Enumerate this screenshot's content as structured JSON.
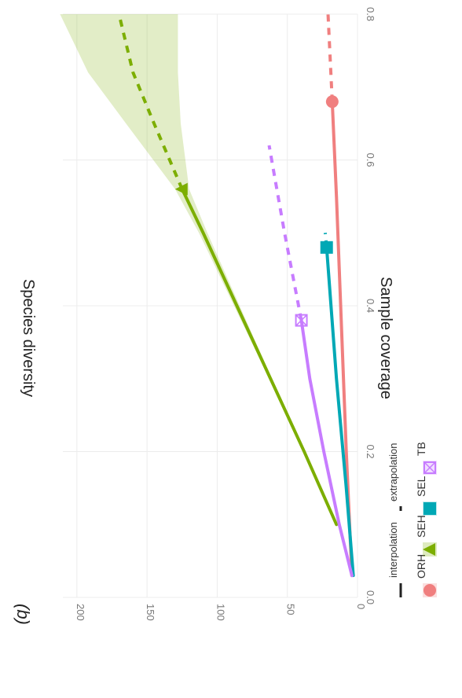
{
  "panel_label": "(b)",
  "chart_data": {
    "type": "line",
    "xlabel": "Sample coverage",
    "ylabel": "Species diversity",
    "xlim": [
      0,
      0.8
    ],
    "ylim": [
      0,
      210
    ],
    "x_ticks": [
      "0.0",
      "0.2",
      "0.4",
      "0.6",
      "0.8"
    ],
    "y_ticks": [
      "0",
      "50",
      "100",
      "150",
      "200"
    ],
    "grid": true,
    "legend_position": "bottom",
    "legend_method": {
      "interpolation": "interpolation",
      "extrapolation": "extrapolation"
    },
    "series": [
      {
        "name": "ORH",
        "color": "#f07f7f",
        "marker": "circle",
        "interpolation": {
          "x": [
            0.03,
            0.2,
            0.4,
            0.55,
            0.68
          ],
          "y": [
            4,
            8,
            12,
            15,
            18
          ]
        },
        "extrapolation": {
          "x": [
            0.68,
            0.8
          ],
          "y": [
            18,
            21
          ]
        },
        "observed": {
          "x": 0.68,
          "y": 18
        }
      },
      {
        "name": "SEH",
        "color": "#7cae00",
        "marker": "triangle",
        "interpolation": {
          "x": [
            0.1,
            0.2,
            0.3,
            0.4,
            0.5,
            0.56
          ],
          "y": [
            15,
            38,
            62,
            86,
            110,
            125
          ]
        },
        "extrapolation": {
          "x": [
            0.56,
            0.65,
            0.72,
            0.8
          ],
          "y": [
            125,
            145,
            160,
            170
          ]
        },
        "observed": {
          "x": 0.56,
          "y": 125
        },
        "ci_lower": [
          15,
          38,
          61,
          84,
          107,
          120,
          126,
          128,
          128
        ],
        "ci_upper": [
          15,
          38,
          63,
          88,
          113,
          130,
          165,
          192,
          212
        ],
        "ci_x": [
          0.1,
          0.2,
          0.3,
          0.4,
          0.5,
          0.56,
          0.65,
          0.72,
          0.8
        ]
      },
      {
        "name": "SEL",
        "color": "#00a8b5",
        "marker": "square",
        "interpolation": {
          "x": [
            0.03,
            0.15,
            0.3,
            0.48
          ],
          "y": [
            3,
            8,
            15,
            22
          ]
        },
        "extrapolation": {
          "x": [
            0.48,
            0.5
          ],
          "y": [
            22,
            23
          ]
        },
        "observed": {
          "x": 0.48,
          "y": 22
        }
      },
      {
        "name": "TB",
        "color": "#c77cff",
        "marker": "square-cross",
        "interpolation": {
          "x": [
            0.03,
            0.1,
            0.2,
            0.3,
            0.38
          ],
          "y": [
            4,
            13,
            24,
            34,
            40
          ]
        },
        "extrapolation": {
          "x": [
            0.38,
            0.5,
            0.62
          ],
          "y": [
            40,
            52,
            63
          ]
        },
        "observed": {
          "x": 0.38,
          "y": 40
        }
      }
    ]
  }
}
